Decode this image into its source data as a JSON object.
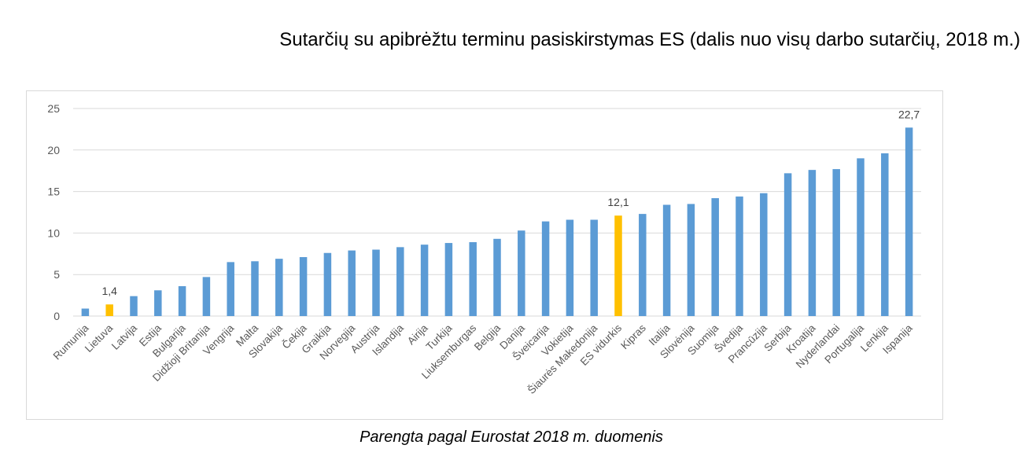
{
  "title": "Sutarčių su apibrėžtu terminu pasiskirstymas ES (dalis nuo visų darbo sutarčių, 2018 m.)",
  "caption": "Parengta pagal Eurostat 2018 m. duomenis",
  "colors": {
    "bar": "#5b9bd5",
    "highlight": "#ffc000",
    "grid": "#d9d9d9",
    "axis_text": "#595959"
  },
  "chart_data": {
    "type": "bar",
    "title": "Sutarčių su apibrėžtu terminu pasiskirstymas ES (dalis nuo visų darbo sutarčių, 2018 m.)",
    "xlabel": "",
    "ylabel": "",
    "ylim": [
      0,
      25
    ],
    "yticks": [
      0,
      5,
      10,
      15,
      20,
      25
    ],
    "grid": true,
    "categories": [
      "Rumunija",
      "Lietuva",
      "Latvija",
      "Estija",
      "Bulgarija",
      "Didžioji Britanija",
      "Vengrija",
      "Malta",
      "Slovakija",
      "Čekija",
      "Graikija",
      "Norvegija",
      "Austrija",
      "Islandija",
      "Airija",
      "Turkija",
      "Liuksemburgas",
      "Belgija",
      "Danija",
      "Šveicarija",
      "Vokietija",
      "Šiaurės Makedonija",
      "ES vidurkis",
      "Kipras",
      "Italija",
      "Slovėnija",
      "Suomija",
      "Švedija",
      "Prancūzija",
      "Serbija",
      "Kroatija",
      "Nyderlandai",
      "Portugalija",
      "Lenkija",
      "Ispanija"
    ],
    "values": [
      0.9,
      1.4,
      2.4,
      3.1,
      3.6,
      4.7,
      6.5,
      6.6,
      6.9,
      7.1,
      7.6,
      7.9,
      8.0,
      8.3,
      8.6,
      8.8,
      8.9,
      9.3,
      10.3,
      11.4,
      11.6,
      11.6,
      12.1,
      12.3,
      13.4,
      13.5,
      14.2,
      14.4,
      14.8,
      17.2,
      17.6,
      17.7,
      19.0,
      19.6,
      22.7
    ],
    "highlighted": [
      "Lietuva",
      "ES vidurkis"
    ],
    "data_labels": [
      {
        "category": "Lietuva",
        "text": "1,4"
      },
      {
        "category": "ES vidurkis",
        "text": "12,1"
      },
      {
        "category": "Ispanija",
        "text": "22,7"
      }
    ]
  }
}
